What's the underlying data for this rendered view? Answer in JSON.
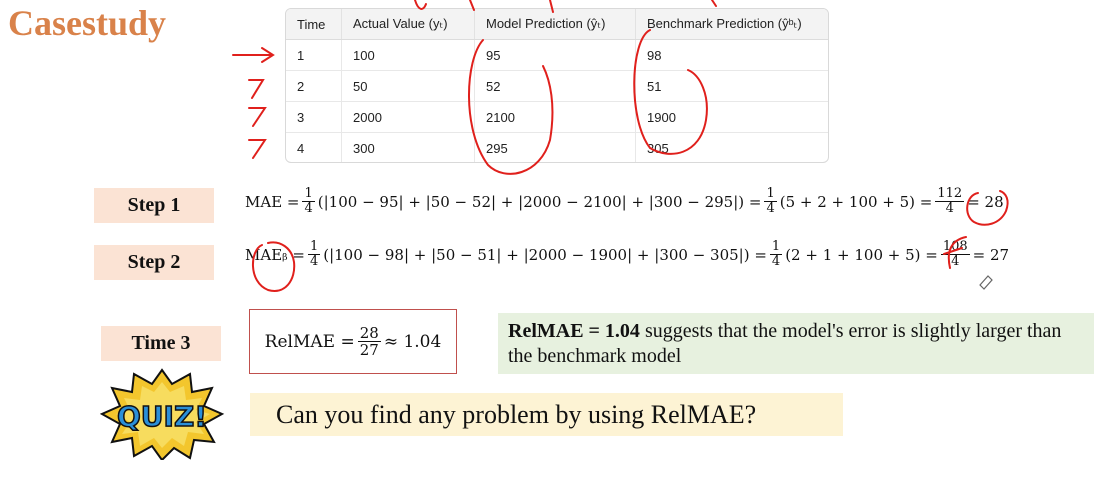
{
  "title": "Casestudy",
  "table": {
    "headers": [
      "Time",
      "Actual Value (yₜ)",
      "Model Prediction (ŷₜ)",
      "Benchmark Prediction (ŷᵇₜ)"
    ],
    "rows": [
      [
        "1",
        "100",
        "95",
        "98"
      ],
      [
        "2",
        "50",
        "52",
        "51"
      ],
      [
        "3",
        "2000",
        "2100",
        "1900"
      ],
      [
        "4",
        "300",
        "295",
        "305"
      ]
    ]
  },
  "step1": {
    "label": "Step 1",
    "lhs": "MAE =",
    "frac_num": "1",
    "frac_den": "4",
    "expr": "(|100 − 95| + |50 − 52| + |2000 − 2100| + |300 − 295|) =",
    "frac2_num": "1",
    "frac2_den": "4",
    "expr2": "(5 + 2 + 100 + 5) =",
    "res_num": "112",
    "res_den": "4",
    "result": "= 28"
  },
  "step2": {
    "label": "Step 2",
    "lhs": "MAEᵦ =",
    "frac_num": "1",
    "frac_den": "4",
    "expr": "(|100 − 98| + |50 − 51| + |2000 − 1900| + |300 − 305|) =",
    "frac2_num": "1",
    "frac2_den": "4",
    "expr2": "(2 + 1 + 100 + 5) =",
    "res_num": "108",
    "res_den": "4",
    "result": "= 27"
  },
  "time3": {
    "label": "Time 3",
    "lhs": "RelMAE =",
    "num": "28",
    "den": "27",
    "approx": "≈ 1.04"
  },
  "note": {
    "bold": "RelMAE = 1.04",
    "text": " suggests that the model's error is slightly larger than the benchmark model"
  },
  "quiz": {
    "badge": "QUIZ!",
    "question": "Can you find any problem by using RelMAE?"
  },
  "colors": {
    "title": "#d9824a",
    "label_bg": "#fbe3d4",
    "note_bg": "#e7f1df",
    "quiz_bg": "#fdf3d4",
    "ink": "#e0201c",
    "box_border": "#c0504d"
  }
}
